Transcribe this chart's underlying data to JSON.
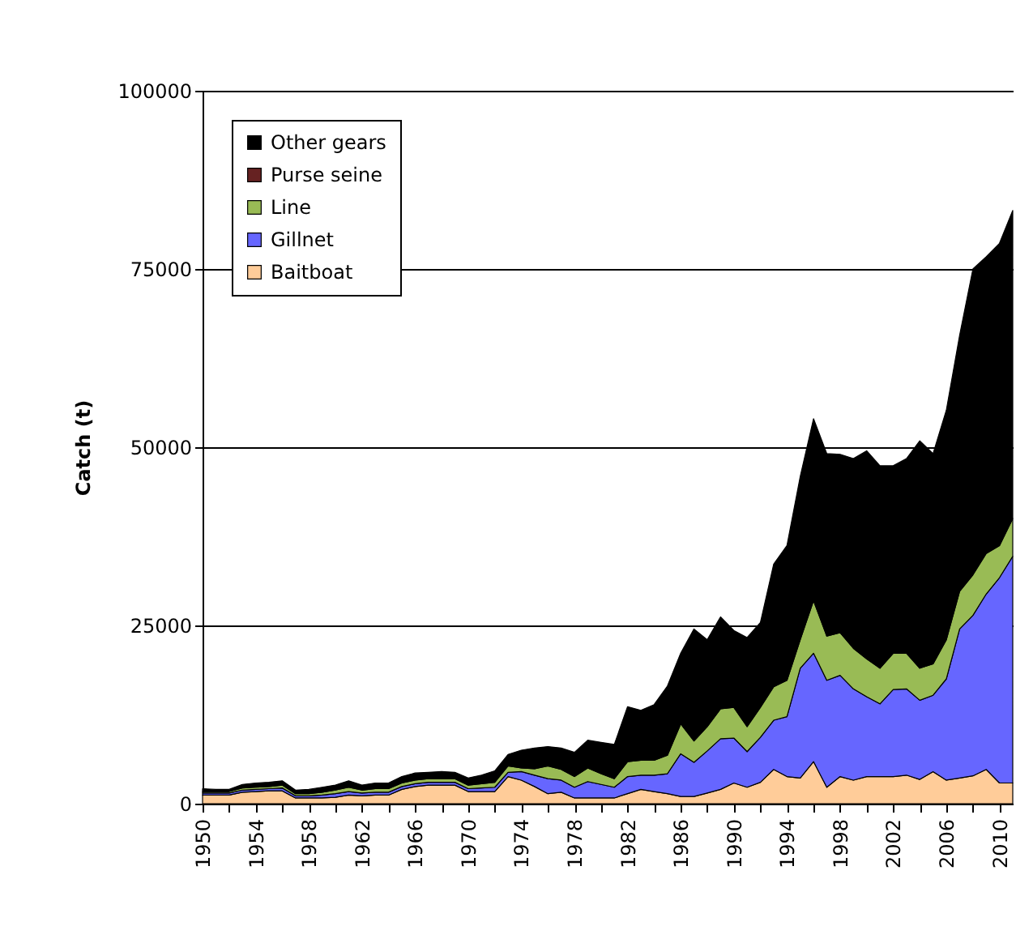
{
  "chart_data": {
    "type": "area",
    "stacked": true,
    "ylabel": "Catch (t)",
    "x": [
      1950,
      1951,
      1952,
      1953,
      1954,
      1955,
      1956,
      1957,
      1958,
      1959,
      1960,
      1961,
      1962,
      1963,
      1964,
      1965,
      1966,
      1967,
      1968,
      1969,
      1970,
      1971,
      1972,
      1973,
      1974,
      1975,
      1976,
      1977,
      1978,
      1979,
      1980,
      1981,
      1982,
      1983,
      1984,
      1985,
      1986,
      1987,
      1988,
      1989,
      1990,
      1991,
      1992,
      1993,
      1994,
      1995,
      1996,
      1997,
      1998,
      1999,
      2000,
      2001,
      2002,
      2003,
      2004,
      2005,
      2006,
      2007,
      2008,
      2009,
      2010,
      2011
    ],
    "series": [
      {
        "name": "Baitboat",
        "color": "#ffcc99",
        "values": [
          1200,
          1200,
          1200,
          1600,
          1700,
          1800,
          1800,
          800,
          800,
          800,
          900,
          1200,
          1100,
          1200,
          1200,
          2000,
          2400,
          2600,
          2600,
          2600,
          1700,
          1700,
          1700,
          3800,
          3300,
          2400,
          1400,
          1600,
          800,
          800,
          800,
          800,
          1400,
          2000,
          1700,
          1400,
          1000,
          1000,
          1500,
          2000,
          2900,
          2300,
          3000,
          4800,
          3800,
          3600,
          5900,
          2300,
          3800,
          3300,
          3800,
          3800,
          3800,
          4000,
          3400,
          4500,
          3300,
          3600,
          3900,
          4800,
          2900,
          2900
        ]
      },
      {
        "name": "Gillnet",
        "color": "#6666ff",
        "values": [
          300,
          300,
          300,
          300,
          300,
          300,
          400,
          300,
          300,
          400,
          500,
          500,
          400,
          400,
          400,
          400,
          400,
          400,
          400,
          400,
          400,
          500,
          600,
          600,
          1200,
          1600,
          2100,
          1700,
          1500,
          2300,
          1900,
          1500,
          2400,
          2000,
          2300,
          2800,
          6000,
          4800,
          5900,
          7100,
          6300,
          5000,
          6300,
          6900,
          8400,
          15400,
          15200,
          15000,
          14200,
          12800,
          11200,
          10200,
          12200,
          12100,
          11100,
          10700,
          14200,
          20900,
          22500,
          24600,
          28800,
          31800
        ]
      },
      {
        "name": "Line",
        "color": "#99bb55",
        "values": [
          200,
          200,
          200,
          300,
          300,
          300,
          400,
          300,
          300,
          400,
          500,
          600,
          400,
          500,
          500,
          500,
          500,
          500,
          500,
          500,
          500,
          600,
          700,
          900,
          500,
          900,
          1800,
          1500,
          1500,
          1900,
          1500,
          1200,
          2100,
          2100,
          2100,
          2600,
          4200,
          3000,
          3400,
          4200,
          4300,
          3500,
          4200,
          4700,
          5100,
          4000,
          7400,
          6200,
          6000,
          5700,
          5300,
          5000,
          5100,
          5000,
          4500,
          4400,
          5500,
          5300,
          5700,
          5700,
          4500,
          5300
        ]
      },
      {
        "name": "Purse seine",
        "color": "#662222",
        "values": [
          null,
          null,
          null,
          null,
          null,
          null,
          null,
          null,
          null,
          null,
          null,
          null,
          null,
          null,
          null,
          null,
          null,
          null,
          null,
          null,
          null,
          null,
          null,
          null,
          null,
          null,
          null,
          null,
          null,
          null,
          null,
          null,
          null,
          null,
          null,
          null,
          null,
          null,
          null,
          null,
          null,
          null,
          null,
          null,
          null,
          null,
          null,
          null,
          null,
          null,
          null,
          null,
          null,
          null,
          null,
          null,
          null,
          null,
          null,
          null,
          null,
          null
        ]
      },
      {
        "name": "Other gears",
        "color": "#000000",
        "values": [
          400,
          300,
          300,
          500,
          600,
          600,
          600,
          500,
          600,
          700,
          700,
          900,
          700,
          800,
          800,
          900,
          1000,
          900,
          1000,
          900,
          1000,
          1200,
          1600,
          1600,
          2500,
          2900,
          2700,
          3000,
          3400,
          3900,
          4400,
          4800,
          7700,
          7000,
          7800,
          9700,
          9900,
          15700,
          12200,
          12900,
          10800,
          12500,
          11900,
          17200,
          18900,
          22900,
          25500,
          25600,
          25000,
          26600,
          29200,
          28400,
          26300,
          27300,
          31900,
          29500,
          32200,
          35900,
          42900,
          41600,
          42400,
          43200
        ]
      }
    ],
    "xlim": [
      1950,
      2011
    ],
    "xticks": [
      1950,
      {
        "value": 1952,
        "label": null
      },
      1954,
      {
        "value": 1956,
        "label": null
      },
      1958,
      {
        "value": 1960,
        "label": null
      },
      1962,
      {
        "value": 1964,
        "label": null
      },
      1966,
      {
        "value": 1968,
        "label": null
      },
      1970,
      {
        "value": 1972,
        "label": null
      },
      1974,
      {
        "value": 1976,
        "label": null
      },
      1978,
      {
        "value": 1980,
        "label": null
      },
      1982,
      {
        "value": 1984,
        "label": null
      },
      1986,
      {
        "value": 1988,
        "label": null
      },
      1990,
      {
        "value": 1992,
        "label": null
      },
      1994,
      {
        "value": 1996,
        "label": null
      },
      1998,
      {
        "value": 2000,
        "label": null
      },
      2002,
      {
        "value": 2004,
        "label": null
      },
      2006,
      {
        "value": 2008,
        "label": null
      },
      2010
    ],
    "ylim": [
      0,
      100000
    ],
    "yticks": [
      0,
      25000,
      50000,
      75000,
      100000
    ],
    "grid": "y",
    "legend": "top left"
  }
}
